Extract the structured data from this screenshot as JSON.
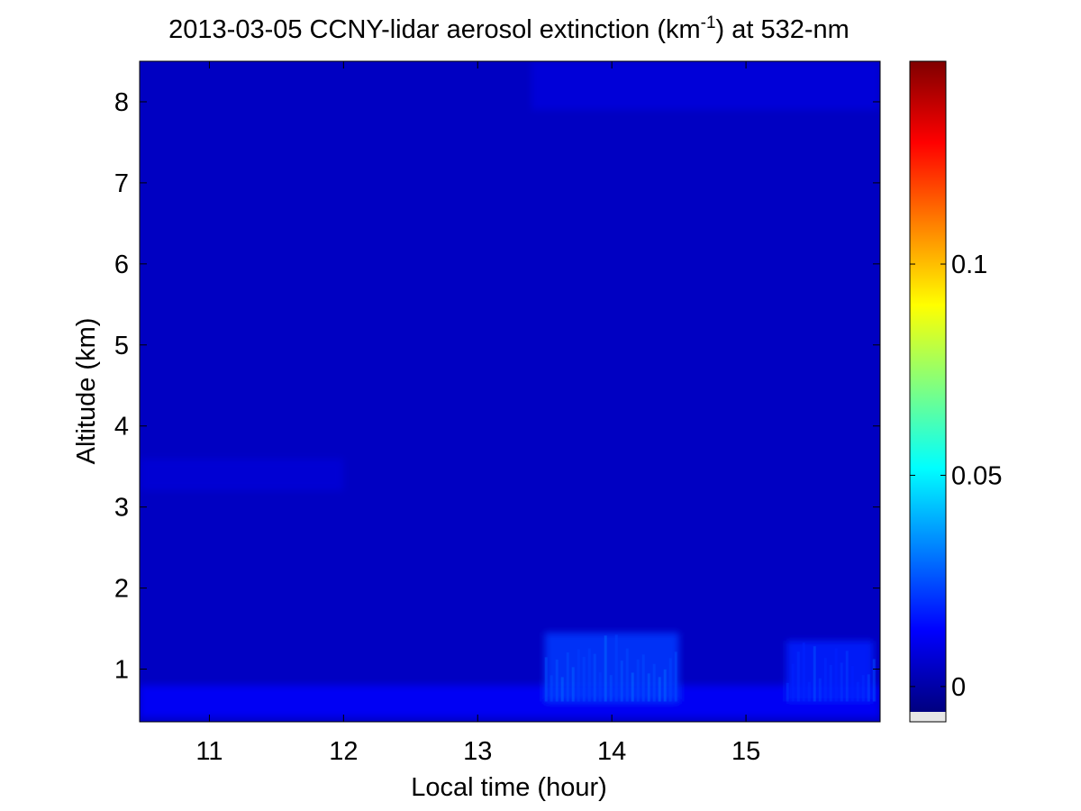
{
  "chart_data": {
    "type": "heatmap",
    "title": {
      "prefix": "2013-03-05 CCNY-lidar aerosol extinction (km",
      "superscript": "-1",
      "suffix": ") at 532-nm"
    },
    "xlabel": "Local time (hour)",
    "ylabel": "Altitude (km)",
    "xlim": [
      10.48,
      16.0
    ],
    "ylim": [
      0.35,
      8.5
    ],
    "xticks": [
      11,
      12,
      13,
      14,
      15
    ],
    "yticks": [
      1,
      2,
      3,
      4,
      5,
      6,
      7,
      8
    ],
    "colorbar": {
      "colormap": "jet",
      "range": [
        -0.006,
        0.148
      ],
      "ticks": [
        0,
        0.05,
        0.1
      ],
      "tick_labels": [
        "0",
        "0.05",
        "0.1"
      ],
      "nodata_color": "#e6e6e6"
    },
    "background_extinction": 0.004,
    "features": [
      {
        "feature": "near-surface aerosol layer",
        "x_range": [
          10.48,
          16.0
        ],
        "y_range": [
          0.4,
          0.8
        ],
        "extinction": 0.013
      },
      {
        "feature": "boundary-layer plumes",
        "x_range": [
          13.5,
          14.5
        ],
        "y_range": [
          0.6,
          1.45
        ],
        "extinction": 0.022
      },
      {
        "feature": "boundary-layer plumes",
        "x_range": [
          15.3,
          15.95
        ],
        "y_range": [
          0.6,
          1.35
        ],
        "extinction": 0.018
      },
      {
        "feature": "upper-level thin layer",
        "x_range": [
          13.4,
          16.0
        ],
        "y_range": [
          7.9,
          8.5
        ],
        "extinction": 0.008
      },
      {
        "feature": "elevated faint layer",
        "x_range": [
          10.48,
          12.0
        ],
        "y_range": [
          3.2,
          3.6
        ],
        "extinction": 0.007
      }
    ]
  }
}
